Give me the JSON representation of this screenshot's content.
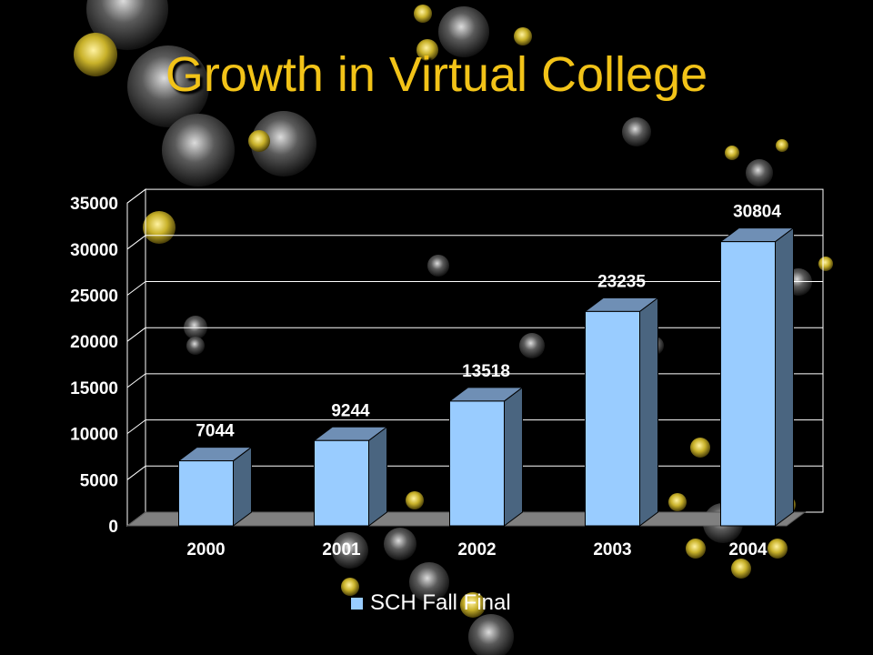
{
  "slide": {
    "title": "Growth in Virtual College"
  },
  "chart_data": {
    "type": "bar",
    "categories": [
      "2000",
      "2001",
      "2002",
      "2003",
      "2004"
    ],
    "series": [
      {
        "name": "SCH Fall Final",
        "values": [
          7044,
          9244,
          13518,
          23235,
          30804
        ]
      }
    ],
    "data_labels": [
      "7044",
      "9244",
      "13518",
      "23235",
      "30804"
    ],
    "y_ticks": [
      "0",
      "5000",
      "10000",
      "15000",
      "20000",
      "25000",
      "30000",
      "35000"
    ],
    "ylim": [
      0,
      35000
    ],
    "grid": true,
    "legend_position": "bottom",
    "three_d": true
  },
  "colors": {
    "background": "#000000",
    "title": "#f2c318",
    "bar_front": "#99ccff",
    "bar_side": "#4a6580",
    "bar_top": "#6f8fb5",
    "floor": "#808080",
    "text": "#ffffff",
    "grid": "#ffffff"
  }
}
